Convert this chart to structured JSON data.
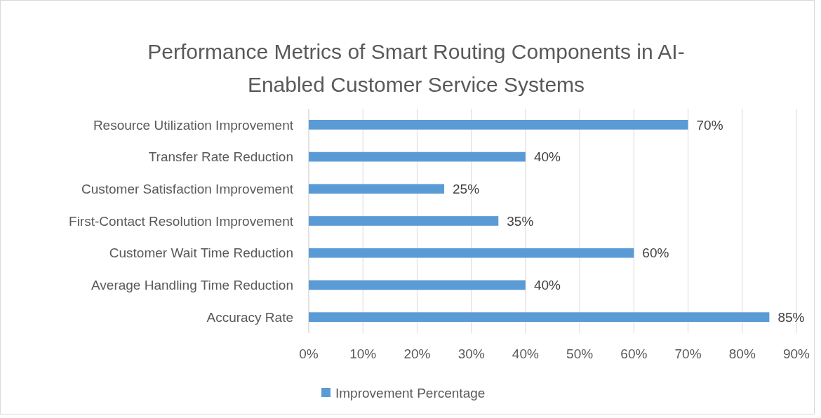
{
  "chart_data": {
    "type": "bar",
    "orientation": "horizontal",
    "title": "Performance Metrics of Smart Routing Components in AI-Enabled Customer Service Systems",
    "categories": [
      "Resource Utilization Improvement",
      "Transfer Rate Reduction",
      "Customer Satisfaction Improvement",
      "First-Contact Resolution Improvement",
      "Customer Wait Time Reduction",
      "Average Handling Time Reduction",
      "Accuracy Rate"
    ],
    "series": [
      {
        "name": "Improvement Percentage",
        "color": "#5b9bd5",
        "values": [
          70,
          40,
          25,
          35,
          60,
          40,
          85
        ],
        "value_labels": [
          "70%",
          "40%",
          "25%",
          "35%",
          "60%",
          "40%",
          "85%"
        ]
      }
    ],
    "xlim": [
      0,
      90
    ],
    "xticks": [
      {
        "value": 0,
        "label": "0%"
      },
      {
        "value": 10,
        "label": "10%"
      },
      {
        "value": 20,
        "label": "20%"
      },
      {
        "value": 30,
        "label": "30%"
      },
      {
        "value": 40,
        "label": "40%"
      },
      {
        "value": 50,
        "label": "50%"
      },
      {
        "value": 60,
        "label": "60%"
      },
      {
        "value": 70,
        "label": "70%"
      },
      {
        "value": 80,
        "label": "80%"
      },
      {
        "value": 90,
        "label": "90%"
      }
    ],
    "grid": "x",
    "legend": "bottom"
  }
}
